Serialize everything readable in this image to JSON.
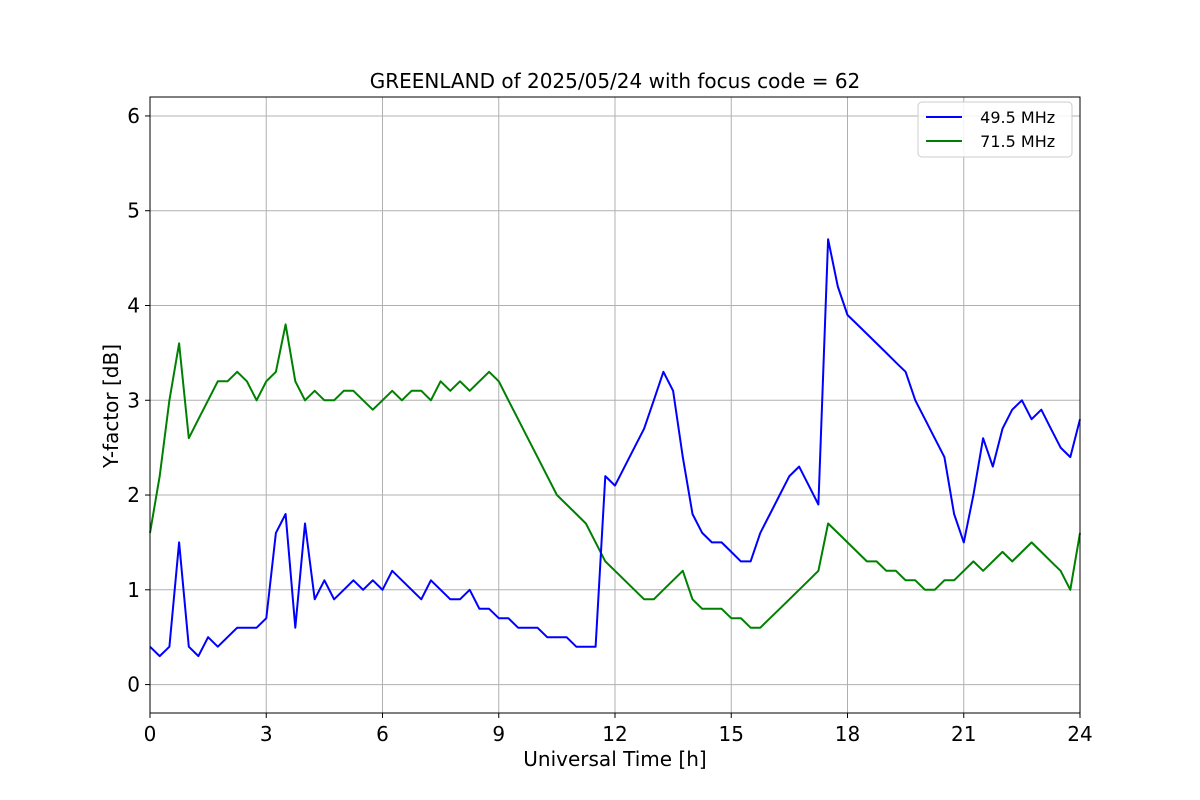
{
  "chart_data": {
    "type": "line",
    "title": "GREENLAND of 2025/05/24 with focus code = 62",
    "xlabel": "Universal Time [h]",
    "ylabel": "Y-factor [dB]",
    "xlim": [
      0,
      24
    ],
    "ylim": [
      -0.3,
      6.2
    ],
    "xticks": [
      0,
      3,
      6,
      9,
      12,
      15,
      18,
      21,
      24
    ],
    "yticks": [
      0,
      1,
      2,
      3,
      4,
      5,
      6
    ],
    "grid": true,
    "legend_position": "top-right",
    "series": [
      {
        "name": "  49.5 MHz",
        "color": "#0000ff",
        "x": [
          0,
          0.25,
          0.5,
          0.75,
          1.0,
          1.25,
          1.5,
          1.75,
          2.0,
          2.25,
          2.5,
          2.75,
          3.0,
          3.25,
          3.5,
          3.75,
          4.0,
          4.25,
          4.5,
          4.75,
          5.0,
          5.25,
          5.5,
          5.75,
          6.0,
          6.25,
          6.5,
          6.75,
          7.0,
          7.25,
          7.5,
          7.75,
          8.0,
          8.25,
          8.5,
          8.75,
          9.0,
          9.25,
          9.5,
          9.75,
          10.0,
          10.25,
          10.5,
          10.75,
          11.0,
          11.25,
          11.5,
          11.75,
          12.0,
          12.25,
          12.5,
          12.75,
          13.0,
          13.25,
          13.5,
          13.75,
          14.0,
          14.25,
          14.5,
          14.75,
          15.0,
          15.25,
          15.5,
          15.75,
          16.0,
          16.25,
          16.5,
          16.75,
          17.0,
          17.25,
          17.5,
          17.75,
          18.0,
          18.25,
          18.5,
          18.75,
          19.0,
          19.25,
          19.5,
          19.75,
          20.0,
          20.25,
          20.5,
          20.75,
          21.0,
          21.25,
          21.5,
          21.75,
          22.0,
          22.25,
          22.5,
          22.75,
          23.0,
          23.25,
          23.5,
          23.75,
          24.0
        ],
        "y": [
          0.4,
          0.3,
          0.4,
          1.5,
          0.4,
          0.3,
          0.5,
          0.4,
          0.5,
          0.6,
          0.6,
          0.6,
          0.7,
          1.6,
          1.8,
          0.6,
          1.7,
          0.9,
          1.1,
          0.9,
          1.0,
          1.1,
          1.0,
          1.1,
          1.0,
          1.2,
          1.1,
          1.0,
          0.9,
          1.1,
          1.0,
          0.9,
          0.9,
          1.0,
          0.8,
          0.8,
          0.7,
          0.7,
          0.6,
          0.6,
          0.6,
          0.5,
          0.5,
          0.5,
          0.4,
          0.4,
          0.4,
          2.2,
          2.1,
          2.3,
          2.5,
          2.7,
          3.0,
          3.3,
          3.1,
          2.4,
          1.8,
          1.6,
          1.5,
          1.5,
          1.4,
          1.3,
          1.3,
          1.6,
          1.8,
          2.0,
          2.2,
          2.3,
          2.1,
          1.9,
          4.7,
          4.2,
          3.9,
          3.8,
          3.7,
          3.6,
          3.5,
          3.4,
          3.3,
          3.0,
          2.8,
          2.6,
          2.4,
          1.8,
          1.5,
          2.0,
          2.6,
          2.3,
          2.7,
          2.9,
          3.0,
          2.8,
          2.9,
          2.7,
          2.5,
          2.4,
          2.8
        ]
      },
      {
        "name": "  71.5 MHz",
        "color": "#008000",
        "x": [
          0,
          0.25,
          0.5,
          0.75,
          1.0,
          1.25,
          1.5,
          1.75,
          2.0,
          2.25,
          2.5,
          2.75,
          3.0,
          3.25,
          3.5,
          3.75,
          4.0,
          4.25,
          4.5,
          4.75,
          5.0,
          5.25,
          5.5,
          5.75,
          6.0,
          6.25,
          6.5,
          6.75,
          7.0,
          7.25,
          7.5,
          7.75,
          8.0,
          8.25,
          8.5,
          8.75,
          9.0,
          9.25,
          9.5,
          9.75,
          10.0,
          10.25,
          10.5,
          10.75,
          11.0,
          11.25,
          11.5,
          11.75,
          12.0,
          12.25,
          12.5,
          12.75,
          13.0,
          13.25,
          13.5,
          13.75,
          14.0,
          14.25,
          14.5,
          14.75,
          15.0,
          15.25,
          15.5,
          15.75,
          16.0,
          16.25,
          16.5,
          16.75,
          17.0,
          17.25,
          17.5,
          17.75,
          18.0,
          18.25,
          18.5,
          18.75,
          19.0,
          19.25,
          19.5,
          19.75,
          20.0,
          20.25,
          20.5,
          20.75,
          21.0,
          21.25,
          21.5,
          21.75,
          22.0,
          22.25,
          22.5,
          22.75,
          23.0,
          23.25,
          23.5,
          23.75,
          24.0
        ],
        "y": [
          1.6,
          2.2,
          3.0,
          3.6,
          2.6,
          2.8,
          3.0,
          3.2,
          3.2,
          3.3,
          3.2,
          3.0,
          3.2,
          3.3,
          3.8,
          3.2,
          3.0,
          3.1,
          3.0,
          3.0,
          3.1,
          3.1,
          3.0,
          2.9,
          3.0,
          3.1,
          3.0,
          3.1,
          3.1,
          3.0,
          3.2,
          3.1,
          3.2,
          3.1,
          3.2,
          3.3,
          3.2,
          3.0,
          2.8,
          2.6,
          2.4,
          2.2,
          2.0,
          1.9,
          1.8,
          1.7,
          1.5,
          1.3,
          1.2,
          1.1,
          1.0,
          0.9,
          0.9,
          1.0,
          1.1,
          1.2,
          0.9,
          0.8,
          0.8,
          0.8,
          0.7,
          0.7,
          0.6,
          0.6,
          0.7,
          0.8,
          0.9,
          1.0,
          1.1,
          1.2,
          1.7,
          1.6,
          1.5,
          1.4,
          1.3,
          1.3,
          1.2,
          1.2,
          1.1,
          1.1,
          1.0,
          1.0,
          1.1,
          1.1,
          1.2,
          1.3,
          1.2,
          1.3,
          1.4,
          1.3,
          1.4,
          1.5,
          1.4,
          1.3,
          1.2,
          1.0,
          1.6
        ]
      }
    ]
  }
}
